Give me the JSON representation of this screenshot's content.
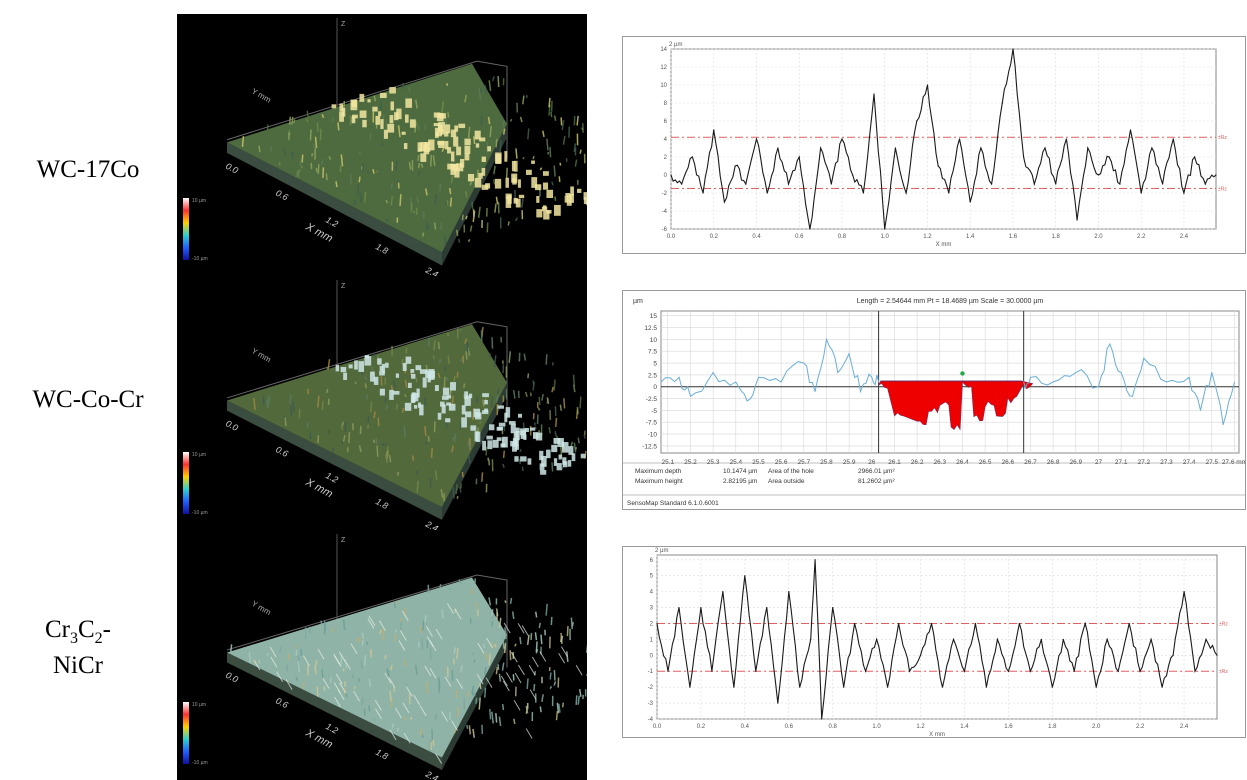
{
  "rows": [
    {
      "label": "WC-17Co",
      "surface_3d": {
        "ticks_x": [
          "0.0",
          "0.6",
          "1.2",
          "1.8",
          "2.4"
        ],
        "x_axis_label": "X mm",
        "y_axis_label": "Y mm",
        "z_axis_label": "Z",
        "scale_top": "10 µm",
        "scale_bottom": "-10 µm"
      }
    },
    {
      "label": "WC-Co-Cr",
      "surface_3d": {
        "ticks_x": [
          "0.0",
          "0.6",
          "1.2",
          "1.8",
          "2.4"
        ],
        "x_axis_label": "X mm",
        "y_axis_label": "Y mm",
        "z_axis_label": "Z",
        "scale_top": "10 µm",
        "scale_bottom": "-10 µm"
      }
    },
    {
      "label_lines": [
        "Cr3C2-",
        "NiCr"
      ],
      "label_parts": {
        "a": "Cr",
        "b": "3",
        "c": "C",
        "d": "2",
        "e": "-",
        "f": "NiCr"
      },
      "surface_3d": {
        "ticks_x": [
          "0.0",
          "0.6",
          "1.2",
          "1.8",
          "2.4"
        ],
        "x_axis_label": "X mm",
        "y_axis_label": "Y mm",
        "z_axis_label": "Z",
        "scale_top": "10 µm",
        "scale_bottom": "-10 µm"
      }
    }
  ],
  "colors": {
    "profile_line": "#1a1a1a",
    "ref_line": "#e06060",
    "light_profile": "#6aaed6",
    "hole_fill": "#ee0000",
    "mean_line": "#333333"
  },
  "chart_data": [
    {
      "type": "line",
      "unit_label": "2 µm",
      "xlabel": "X mm",
      "x_ticks": [
        "0.0",
        "0.2",
        "0.4",
        "0.6",
        "0.8",
        "1.0",
        "1.2",
        "1.4",
        "1.6",
        "1.8",
        "2.0",
        "2.2",
        "2.4"
      ],
      "y_ticks": [
        "-6",
        "-4",
        "-2",
        "0",
        "2",
        "4",
        "6",
        "8",
        "10",
        "12",
        "14"
      ],
      "ylim": [
        -6,
        14
      ],
      "xlim": [
        0,
        2.55
      ],
      "ref_lines": [
        {
          "y": 4.2,
          "label": "±Rz"
        },
        {
          "y": -1.5,
          "label": "±Rz"
        }
      ],
      "x": [
        0.0,
        0.05,
        0.1,
        0.15,
        0.2,
        0.25,
        0.3,
        0.35,
        0.4,
        0.45,
        0.5,
        0.55,
        0.6,
        0.65,
        0.7,
        0.75,
        0.8,
        0.85,
        0.9,
        0.95,
        1.0,
        1.05,
        1.1,
        1.15,
        1.2,
        1.25,
        1.3,
        1.35,
        1.4,
        1.45,
        1.5,
        1.55,
        1.6,
        1.65,
        1.7,
        1.75,
        1.8,
        1.85,
        1.9,
        1.95,
        2.0,
        2.05,
        2.1,
        2.15,
        2.2,
        2.25,
        2.3,
        2.35,
        2.4,
        2.45,
        2.5,
        2.55
      ],
      "y": [
        0,
        -1,
        2,
        -2,
        5,
        -3,
        1,
        -1,
        4,
        -2,
        3,
        -1,
        2,
        -6,
        3,
        -1,
        4,
        0,
        -2,
        9,
        -6,
        3,
        -2,
        6,
        10,
        1,
        -2,
        4,
        -3,
        3,
        -1,
        8,
        14,
        2,
        -1,
        3,
        -1,
        4,
        -5,
        3,
        0,
        2,
        -1,
        5,
        -2,
        3,
        -1,
        4,
        -2,
        2,
        -1,
        0
      ]
    },
    {
      "type": "area",
      "title": "Length = 2.54644 mm  Pt = 18.4689 µm  Scale = 30.0000 µm",
      "unit_label": "µm",
      "x_ticks": [
        "25.1",
        "25.2",
        "25.3",
        "25.4",
        "25.5",
        "25.6",
        "25.7",
        "25.8",
        "25.9",
        "26",
        "26.1",
        "26.2",
        "26.3",
        "26.4",
        "26.5",
        "26.6",
        "26.7",
        "26.8",
        "26.9",
        "27",
        "27.1",
        "27.2",
        "27.3",
        "27.4",
        "27.5",
        "27.6 mm"
      ],
      "y_ticks": [
        "15",
        "12.5",
        "10",
        "7.5",
        "5",
        "2.5",
        "0",
        "-2.5",
        "-5",
        "-7.5",
        "-10",
        "-12.5"
      ],
      "ylim": [
        -14,
        16
      ],
      "xlim": [
        25.07,
        27.62
      ],
      "hole_range": [
        26.03,
        26.67
      ],
      "x": [
        25.07,
        25.15,
        25.2,
        25.3,
        25.4,
        25.45,
        25.5,
        25.6,
        25.7,
        25.75,
        25.8,
        25.85,
        25.9,
        25.95,
        26.0,
        26.03,
        26.1,
        26.2,
        26.25,
        26.3,
        26.35,
        26.4,
        26.45,
        26.5,
        26.55,
        26.6,
        26.67,
        26.7,
        26.8,
        26.9,
        27.0,
        27.05,
        27.1,
        27.15,
        27.2,
        27.3,
        27.4,
        27.45,
        27.5,
        27.55,
        27.6
      ],
      "y": [
        1,
        2,
        -2,
        3,
        1,
        -3,
        2,
        1,
        5,
        -1,
        10,
        3,
        7,
        -1,
        2,
        1,
        -5,
        -7,
        -4,
        -3,
        -8,
        2,
        -6,
        -3,
        -5,
        -2,
        1,
        2,
        1,
        3,
        0,
        9,
        3,
        -2,
        6,
        1,
        2,
        -5,
        3,
        -8,
        1
      ],
      "stats": [
        {
          "label": "Maximum depth",
          "value": "10.1474 µm",
          "label2": "Area of the hole",
          "value2": "2966.01 µm²"
        },
        {
          "label": "Maximum height",
          "value": "2.82195 µm",
          "label2": "Area outside",
          "value2": "81.2602 µm²"
        }
      ],
      "footer": "SensoMap Standard 6.1.0.6001"
    },
    {
      "type": "line",
      "unit_label": "2 µm",
      "xlabel": "X mm",
      "x_ticks": [
        "0.0",
        "0.2",
        "0.4",
        "0.6",
        "0.8",
        "1.0",
        "1.2",
        "1.4",
        "1.6",
        "1.8",
        "2.0",
        "2.2",
        "2.4"
      ],
      "y_ticks": [
        "-4",
        "-3",
        "-2",
        "-1",
        "0",
        "1",
        "2",
        "3",
        "4",
        "5",
        "6"
      ],
      "ylim": [
        -4,
        6.3
      ],
      "xlim": [
        0,
        2.55
      ],
      "ref_lines": [
        {
          "y": 2.0,
          "label": "±Rz"
        },
        {
          "y": -1.0,
          "label": "±Rz"
        }
      ],
      "x": [
        0.0,
        0.05,
        0.1,
        0.15,
        0.2,
        0.25,
        0.3,
        0.35,
        0.4,
        0.45,
        0.5,
        0.55,
        0.6,
        0.65,
        0.7,
        0.72,
        0.75,
        0.8,
        0.85,
        0.9,
        0.95,
        1.0,
        1.05,
        1.1,
        1.15,
        1.2,
        1.25,
        1.3,
        1.35,
        1.4,
        1.45,
        1.5,
        1.55,
        1.6,
        1.65,
        1.7,
        1.75,
        1.8,
        1.85,
        1.9,
        1.95,
        2.0,
        2.05,
        2.1,
        2.15,
        2.2,
        2.25,
        2.3,
        2.35,
        2.4,
        2.45,
        2.5,
        2.55
      ],
      "y": [
        2,
        -1,
        3,
        -2,
        3,
        -1,
        4,
        -2,
        5,
        -1,
        3,
        -3,
        4,
        -2,
        1,
        6,
        -4,
        3,
        -2,
        2,
        -1,
        1,
        -2,
        2,
        -1,
        0,
        2,
        -2,
        1,
        -1,
        2,
        -2,
        1,
        -1,
        2,
        -1,
        1,
        -2,
        1,
        -1,
        2,
        -2,
        1,
        -1,
        2,
        -1,
        1,
        -2,
        0,
        4,
        -1,
        1,
        0
      ]
    }
  ]
}
